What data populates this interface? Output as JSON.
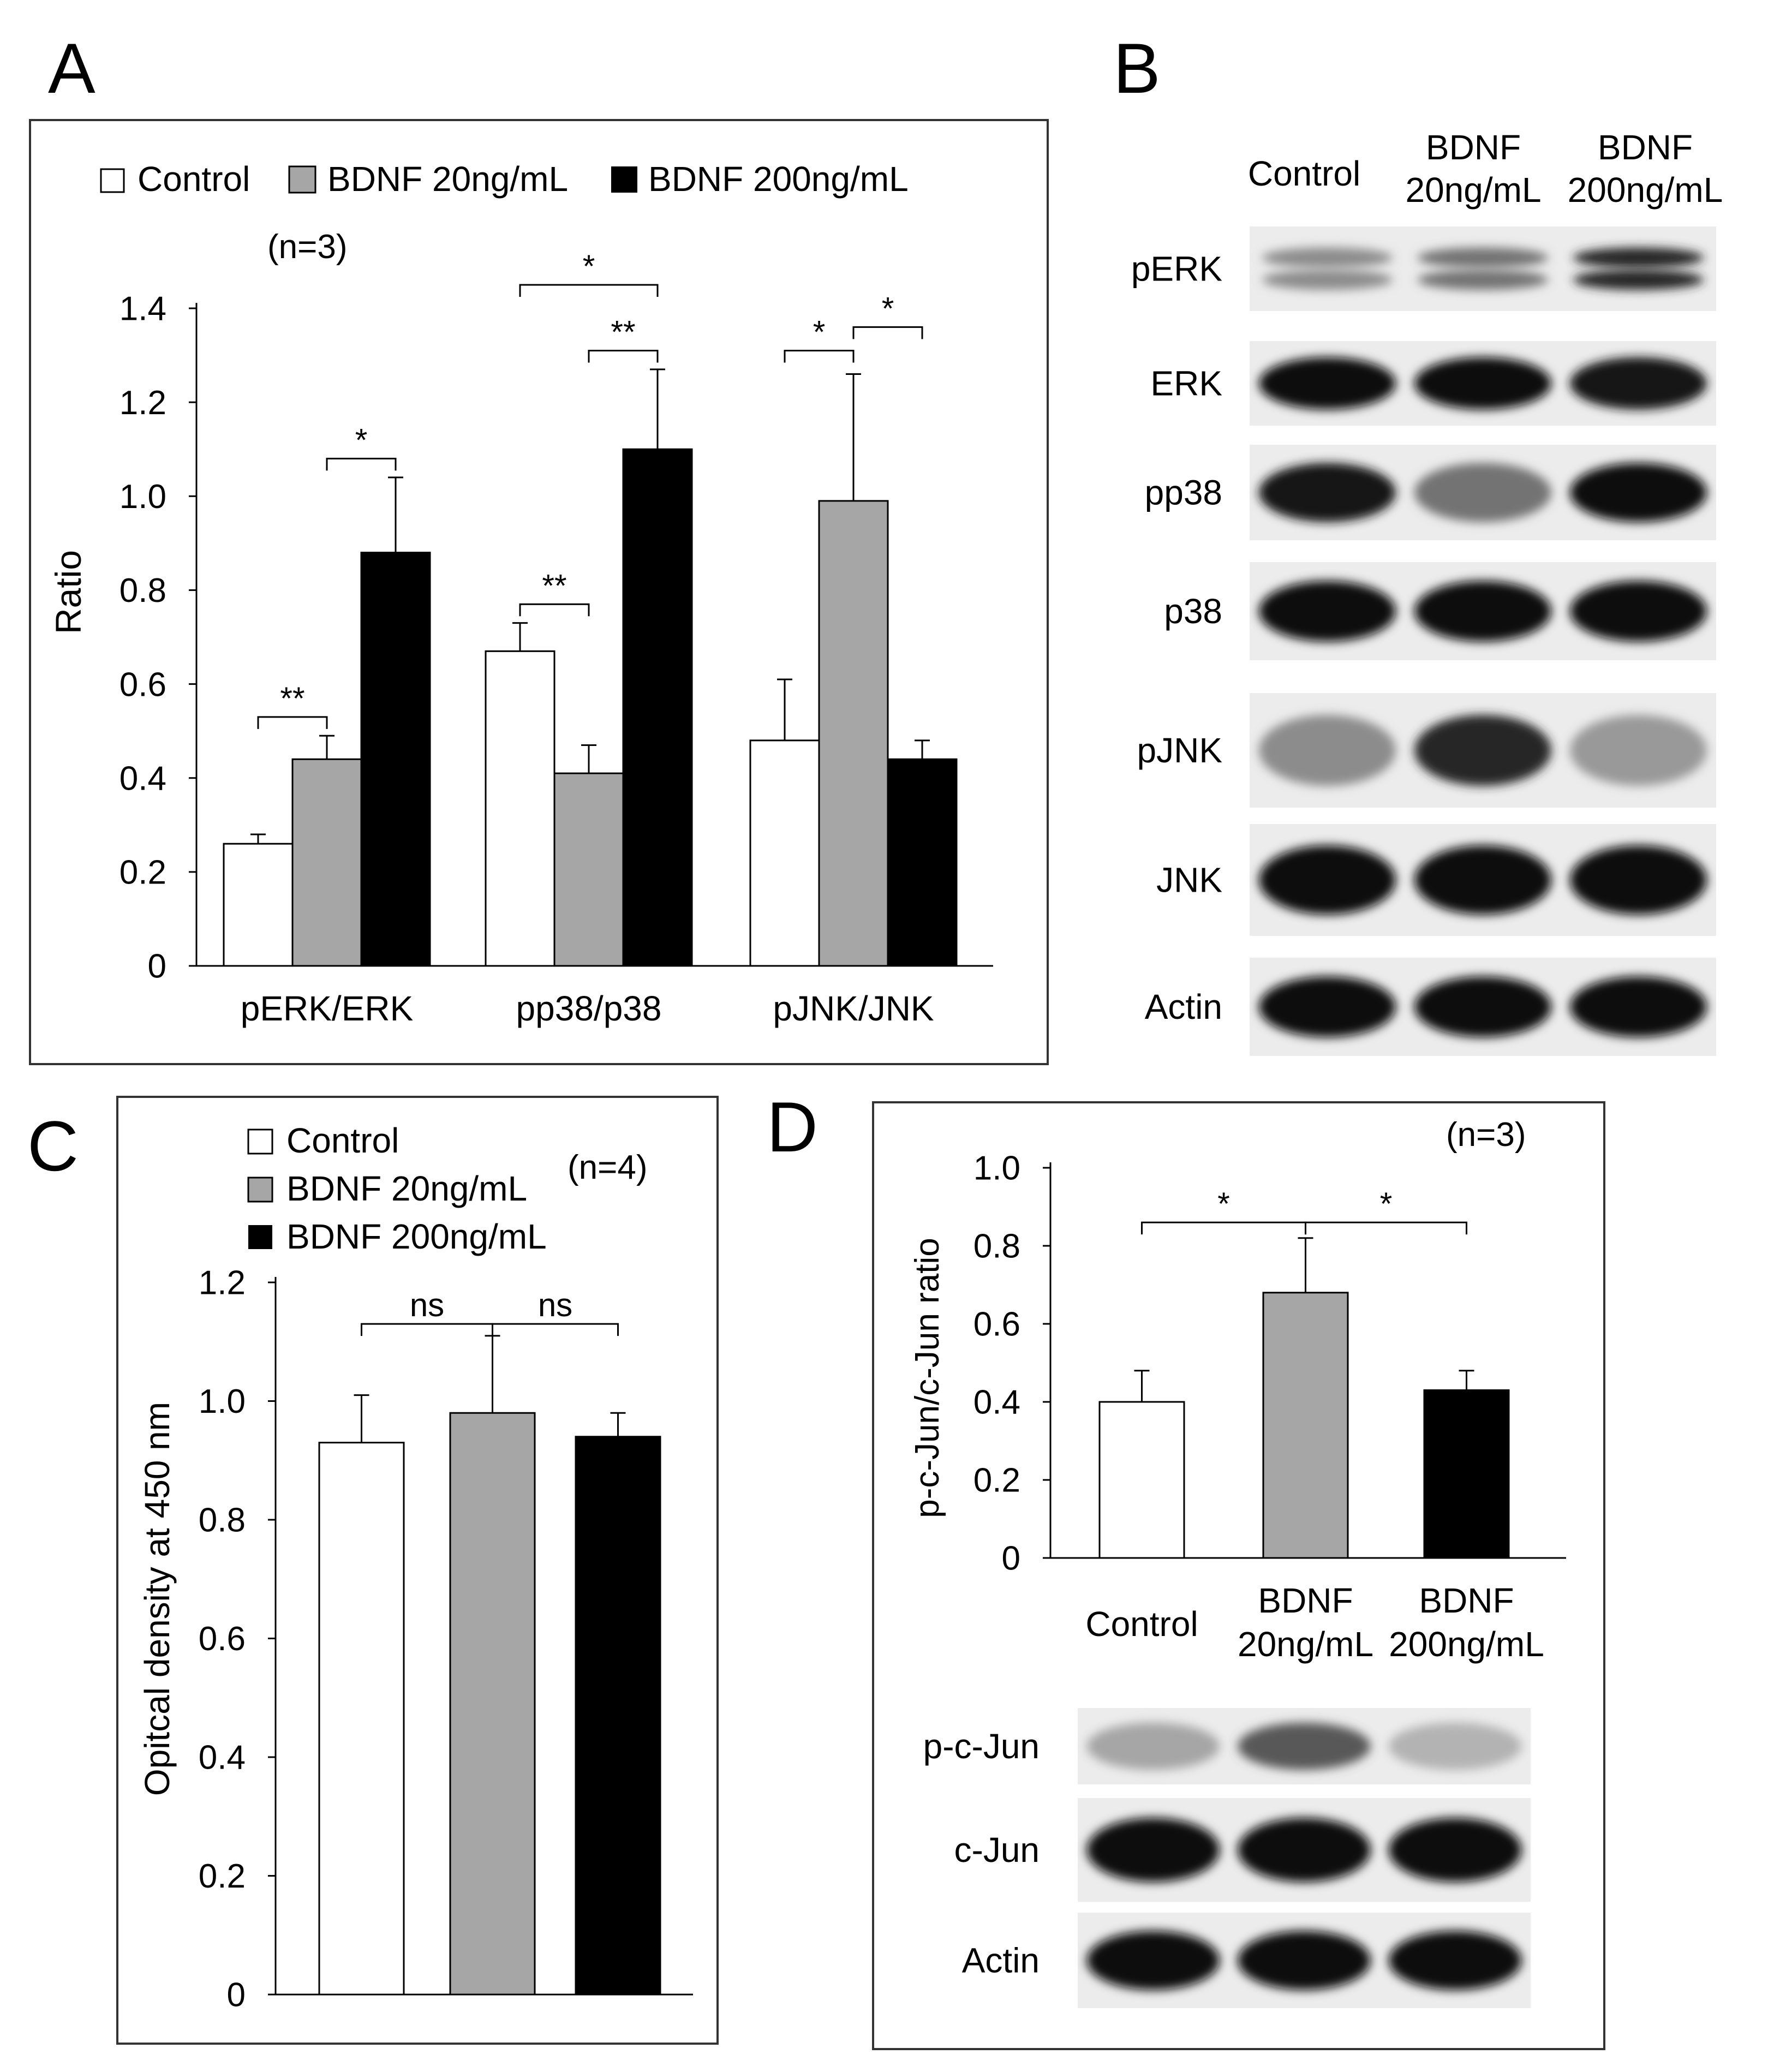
{
  "colors": {
    "control": "#ffffff",
    "bdnf20": "#a6a6a6",
    "bdnf200": "#000000",
    "frame": "#333333"
  },
  "panels": {
    "A": {
      "letter": "A",
      "n_label": "(n=3)"
    },
    "B": {
      "letter": "B"
    },
    "C": {
      "letter": "C",
      "n_label": "(n=4)"
    },
    "D": {
      "letter": "D",
      "n_label": "(n=3)"
    }
  },
  "legend": {
    "control": "Control",
    "bdnf20": "BDNF 20ng/mL",
    "bdnf200": "BDNF 200ng/mL"
  },
  "chart_data": [
    {
      "panel": "A",
      "type": "bar",
      "ylabel": "Ratio",
      "ylim": [
        0,
        1.4
      ],
      "yticks": [
        "0",
        "0.2",
        "0.4",
        "0.6",
        "0.8",
        "1.0",
        "1.2",
        "1.4"
      ],
      "categories": [
        "pERK/ERK",
        "pp38/p38",
        "pJNK/JNK"
      ],
      "series": [
        {
          "name": "Control",
          "values": [
            0.26,
            0.67,
            0.48
          ],
          "errors": [
            0.02,
            0.06,
            0.13
          ]
        },
        {
          "name": "BDNF 20ng/mL",
          "values": [
            0.44,
            0.41,
            0.99
          ],
          "errors": [
            0.05,
            0.06,
            0.27
          ]
        },
        {
          "name": "BDNF 200ng/mL",
          "values": [
            0.88,
            1.1,
            0.44
          ],
          "errors": [
            0.16,
            0.17,
            0.04
          ]
        }
      ],
      "significance": [
        {
          "category": 0,
          "from": 0,
          "to": 1,
          "label": "**",
          "y": 0.53
        },
        {
          "category": 0,
          "from": 1,
          "to": 2,
          "label": "*",
          "y": 1.08
        },
        {
          "category": 1,
          "from": 0,
          "to": 1,
          "label": "**",
          "y": 0.77
        },
        {
          "category": 1,
          "from": 1,
          "to": 2,
          "label": "**",
          "y": 1.31
        },
        {
          "category": 1,
          "from": 0,
          "to": 2,
          "label": "*",
          "y": 1.45
        },
        {
          "category": 2,
          "from": 0,
          "to": 1,
          "label": "*",
          "y": 1.31
        },
        {
          "category": 2,
          "from": 1,
          "to": 2,
          "label": "*",
          "y": 1.36
        }
      ]
    },
    {
      "panel": "C",
      "type": "bar",
      "ylabel": "Opitcal density at 450 nm",
      "ylim": [
        0,
        1.2
      ],
      "yticks": [
        "0",
        "0.2",
        "0.4",
        "0.6",
        "0.8",
        "1.0",
        "1.2"
      ],
      "categories": [
        "Control",
        "BDNF 20ng/mL",
        "BDNF 200ng/mL"
      ],
      "values": [
        0.93,
        0.98,
        0.94
      ],
      "errors": [
        0.08,
        0.13,
        0.04
      ],
      "significance": [
        {
          "from": 0,
          "to": 1,
          "label": "ns",
          "y": 1.13
        },
        {
          "from": 1,
          "to": 2,
          "label": "ns",
          "y": 1.13
        }
      ]
    },
    {
      "panel": "D",
      "type": "bar",
      "ylabel": "p-c-Jun/c-Jun ratio",
      "ylim": [
        0,
        1.0
      ],
      "yticks": [
        "0",
        "0.2",
        "0.4",
        "0.6",
        "0.8",
        "1.0"
      ],
      "categories": [
        "Control",
        "BDNF\n20ng/mL",
        "BDNF\n200ng/mL"
      ],
      "values": [
        0.4,
        0.68,
        0.43
      ],
      "errors": [
        0.08,
        0.14,
        0.05
      ],
      "significance": [
        {
          "from": 0,
          "to": 1,
          "label": "*",
          "y": 0.86
        },
        {
          "from": 1,
          "to": 2,
          "label": "*",
          "y": 0.86
        }
      ]
    }
  ],
  "blots_B": {
    "col_headers": [
      "Control",
      "BDNF\n20ng/mL",
      "BDNF\n200ng/mL"
    ],
    "rows": [
      {
        "label": "pERK",
        "intensity": [
          0.45,
          0.55,
          0.85
        ],
        "double": true
      },
      {
        "label": "ERK",
        "intensity": [
          0.95,
          0.95,
          0.9
        ],
        "double": false
      },
      {
        "label": "pp38",
        "intensity": [
          0.9,
          0.55,
          0.95
        ],
        "double": false
      },
      {
        "label": "p38",
        "intensity": [
          0.97,
          0.97,
          0.97
        ],
        "double": false
      },
      {
        "label": "pJNK",
        "intensity": [
          0.45,
          0.85,
          0.4
        ],
        "double": false
      },
      {
        "label": "JNK",
        "intensity": [
          0.97,
          0.97,
          0.97
        ],
        "double": false
      },
      {
        "label": "Actin",
        "intensity": [
          0.97,
          0.97,
          0.97
        ],
        "double": false
      }
    ]
  },
  "blots_D": {
    "rows": [
      {
        "label": "p-c-Jun",
        "intensity": [
          0.35,
          0.65,
          0.3
        ]
      },
      {
        "label": "c-Jun",
        "intensity": [
          0.97,
          0.97,
          0.95
        ]
      },
      {
        "label": "Actin",
        "intensity": [
          0.97,
          0.97,
          0.97
        ]
      }
    ]
  }
}
